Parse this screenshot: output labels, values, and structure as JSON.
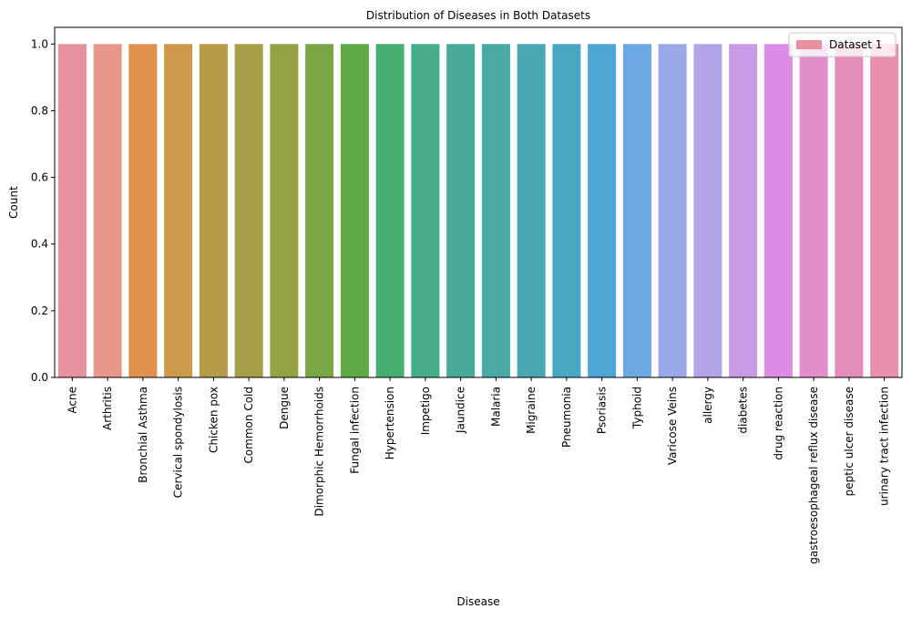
{
  "chart_data": {
    "type": "bar",
    "title": "Distribution of Diseases in Both Datasets",
    "xlabel": "Disease",
    "ylabel": "Count",
    "ylim": [
      0,
      1.05
    ],
    "yticks": [
      0.0,
      0.2,
      0.4,
      0.6,
      0.8,
      1.0
    ],
    "ytick_labels": [
      "0.0",
      "0.2",
      "0.4",
      "0.6",
      "0.8",
      "1.0"
    ],
    "grid": false,
    "legend_position": "top-right",
    "categories": [
      "Acne",
      "Arthritis",
      "Bronchial Asthma",
      "Cervical spondylosis",
      "Chicken pox",
      "Common Cold",
      "Dengue",
      "Dimorphic Hemorrhoids",
      "Fungal infection",
      "Hypertension",
      "Impetigo",
      "Jaundice",
      "Malaria",
      "Migraine",
      "Pneumonia",
      "Psoriasis",
      "Typhoid",
      "Varicose Veins",
      "allergy",
      "diabetes",
      "drug reaction",
      "gastroesophageal reflux disease",
      "peptic ulcer disease",
      "urinary tract infection"
    ],
    "series": [
      {
        "name": "Dataset 1",
        "values": [
          1,
          1,
          1,
          1,
          1,
          1,
          1,
          1,
          1,
          1,
          1,
          1,
          1,
          1,
          1,
          1,
          1,
          1,
          1,
          1,
          1,
          1,
          1,
          1
        ]
      }
    ],
    "bar_colors": [
      "#e8919e",
      "#e7988a",
      "#e0904f",
      "#cc9a4a",
      "#b89b48",
      "#a69f47",
      "#94a245",
      "#7aa645",
      "#5eab46",
      "#48ad71",
      "#46ad88",
      "#48ab97",
      "#49a9a5",
      "#4aa8b4",
      "#4aa7c4",
      "#4ea6d5",
      "#6ba8e4",
      "#9aa8e7",
      "#b3a3e9",
      "#c99ae6",
      "#dc8ce6",
      "#e28ecb",
      "#e48dbb",
      "#e891ae"
    ],
    "legend_swatch_color": "#e8919e"
  }
}
